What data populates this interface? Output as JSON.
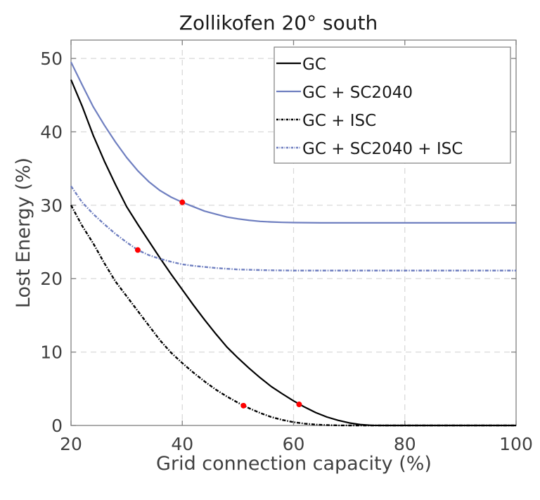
{
  "chart_data": {
    "type": "line",
    "title": "Zollikofen 20° south",
    "xlabel": "Grid connection capacity (%)",
    "ylabel": "Lost Energy (%)",
    "xlim": [
      20,
      100
    ],
    "ylim": [
      0,
      52.5
    ],
    "xticks": [
      20,
      40,
      60,
      80,
      100
    ],
    "yticks": [
      0,
      10,
      20,
      30,
      40,
      50
    ],
    "xtick_labels": [
      "20",
      "40",
      "60",
      "80",
      "100"
    ],
    "ytick_labels": [
      "0",
      "10",
      "20",
      "30",
      "40",
      "50"
    ],
    "grid": true,
    "legend_position": "top-right",
    "series": [
      {
        "name": "GC",
        "color": "#000000",
        "style": "solid",
        "x": [
          20,
          22,
          24,
          26,
          28,
          30,
          32,
          34,
          36,
          38,
          40,
          42,
          44,
          46,
          48,
          50,
          52,
          54,
          56,
          58,
          60,
          62,
          64,
          66,
          68,
          70,
          72,
          74,
          76,
          80,
          90,
          100
        ],
        "y": [
          47.1,
          43.5,
          39.5,
          36.0,
          32.8,
          29.8,
          27.4,
          25.1,
          22.8,
          20.6,
          18.5,
          16.4,
          14.4,
          12.5,
          10.7,
          9.2,
          7.8,
          6.5,
          5.3,
          4.3,
          3.35,
          2.5,
          1.75,
          1.15,
          0.7,
          0.35,
          0.12,
          0.02,
          0,
          0,
          0,
          0
        ],
        "marker": {
          "x": 61,
          "y": 2.87
        }
      },
      {
        "name": "GC + SC2040",
        "color": "#6f7fc0",
        "style": "solid",
        "x": [
          20,
          22,
          24,
          26,
          28,
          30,
          32,
          34,
          36,
          38,
          40,
          42,
          44,
          46,
          48,
          50,
          52,
          54,
          56,
          58,
          60,
          65,
          70,
          80,
          90,
          100
        ],
        "y": [
          49.5,
          46.4,
          43.4,
          40.9,
          38.6,
          36.5,
          34.7,
          33.2,
          32.0,
          31.1,
          30.4,
          29.8,
          29.2,
          28.8,
          28.4,
          28.15,
          27.95,
          27.8,
          27.72,
          27.67,
          27.64,
          27.6,
          27.6,
          27.6,
          27.6,
          27.6
        ],
        "marker": {
          "x": 40,
          "y": 30.4
        }
      },
      {
        "name": "GC + ISC",
        "color": "#000000",
        "style": "dashdot",
        "x": [
          20,
          22,
          24,
          26,
          28,
          30,
          32,
          34,
          36,
          38,
          40,
          42,
          44,
          46,
          48,
          50,
          52,
          54,
          56,
          58,
          60,
          62,
          64,
          66,
          68,
          70,
          80,
          90,
          100
        ],
        "y": [
          30.0,
          27.2,
          24.8,
          22.1,
          19.6,
          17.6,
          15.6,
          13.6,
          11.6,
          9.9,
          8.5,
          7.2,
          6.0,
          4.9,
          3.95,
          3.1,
          2.35,
          1.7,
          1.15,
          0.75,
          0.45,
          0.25,
          0.12,
          0.05,
          0.01,
          0,
          0,
          0,
          0
        ],
        "marker": {
          "x": 51,
          "y": 2.7
        }
      },
      {
        "name": "GC + SC2040 + ISC",
        "color": "#6f7fc0",
        "style": "dashdot",
        "x": [
          20,
          22,
          24,
          26,
          28,
          30,
          32,
          34,
          36,
          38,
          40,
          42,
          44,
          46,
          48,
          50,
          55,
          60,
          70,
          80,
          90,
          100
        ],
        "y": [
          32.6,
          30.4,
          28.8,
          27.4,
          26.1,
          24.95,
          23.9,
          23.2,
          22.7,
          22.3,
          21.95,
          21.75,
          21.6,
          21.45,
          21.35,
          21.25,
          21.15,
          21.1,
          21.1,
          21.1,
          21.1,
          21.1
        ],
        "marker": {
          "x": 32,
          "y": 23.9
        }
      }
    ],
    "marker_color": "#ff0000",
    "colors": {
      "axis": "#808080",
      "grid": "#d9d9d9",
      "text": "#404040"
    }
  }
}
